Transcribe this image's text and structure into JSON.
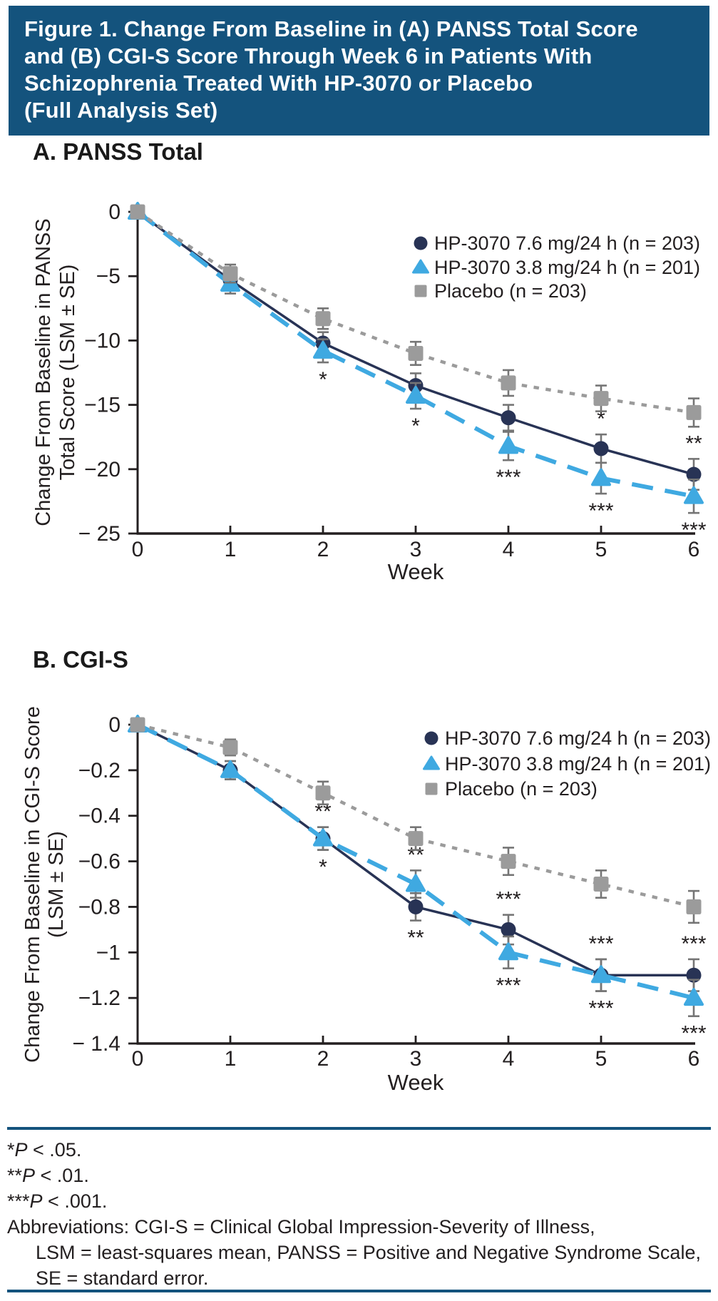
{
  "header": {
    "title_lines": [
      "Figure 1. Change From Baseline in (A) PANSS Total Score",
      "and (B) CGI-S Score Through Week 6 in Patients With",
      "Schizophrenia Treated With HP-3070 or Placebo",
      "(Full Analysis Set)"
    ]
  },
  "panels": {
    "a_label": "A. PANSS Total",
    "b_label": "B. CGI-S"
  },
  "colors": {
    "accent_blue": "#14537D",
    "hp76_navy": "#283355",
    "hp38_blue": "#3FA9E1",
    "placebo_gray": "#9B9B9B",
    "error_bar_gray": "#757575",
    "text": "#231F20"
  },
  "chart_data": [
    {
      "id": "A",
      "type": "line",
      "panel_label": "A. PANSS Total",
      "xlabel": "Week",
      "x": [
        0,
        1,
        2,
        3,
        4,
        5,
        6
      ],
      "xtick_labels": [
        "0",
        "1",
        "2",
        "3",
        "4",
        "5",
        "6"
      ],
      "ylabel_lines": [
        "Change From Baseline in PANSS",
        "Total Score (LSM ± SE)"
      ],
      "ylim": [
        0,
        -25
      ],
      "yticks": [
        {
          "v": 0,
          "label": "0"
        },
        {
          "v": -5,
          "label": "−5"
        },
        {
          "v": -10,
          "label": "−10"
        },
        {
          "v": -15,
          "label": "−15"
        },
        {
          "v": -20,
          "label": "−20"
        },
        {
          "v": -25,
          "label": "− 25"
        }
      ],
      "legend_position": "top-right",
      "grid": false,
      "series": [
        {
          "name": "HP-3070 7.6 mg/24 h (n = 203)",
          "marker": "circle",
          "line_style": "solid",
          "color": "#283355",
          "values": [
            0,
            -5.3,
            -10.2,
            -13.5,
            -16.0,
            -18.4,
            -20.4
          ],
          "se": [
            0.35,
            0.7,
            0.85,
            0.95,
            1.0,
            1.1,
            1.2
          ],
          "significance": [
            {
              "week": 3,
              "label": "*",
              "position": "above"
            },
            {
              "week": 5,
              "label": "*",
              "position": "above"
            },
            {
              "week": 6,
              "label": "**",
              "position": "above"
            }
          ]
        },
        {
          "name": "HP-3070 3.8 mg/24 h (n = 201)",
          "marker": "triangle",
          "line_style": "long-dash",
          "color": "#3FA9E1",
          "values": [
            0,
            -5.6,
            -10.8,
            -14.3,
            -18.2,
            -20.7,
            -22.1
          ],
          "se": [
            0.35,
            0.75,
            0.9,
            1.0,
            1.1,
            1.2,
            1.3
          ],
          "significance": [
            {
              "week": 2,
              "label": "*",
              "position": "below"
            },
            {
              "week": 3,
              "label": "*",
              "position": "below"
            },
            {
              "week": 4,
              "label": "***",
              "position": "below"
            },
            {
              "week": 5,
              "label": "***",
              "position": "below"
            },
            {
              "week": 6,
              "label": "***",
              "position": "below"
            }
          ]
        },
        {
          "name": "Placebo (n = 203)",
          "marker": "square",
          "line_style": "dot",
          "color": "#9B9B9B",
          "values": [
            0,
            -4.8,
            -8.3,
            -11.0,
            -13.3,
            -14.5,
            -15.6
          ],
          "se": [
            0.35,
            0.7,
            0.8,
            0.9,
            1.0,
            1.0,
            1.1
          ],
          "significance": []
        }
      ]
    },
    {
      "id": "B",
      "type": "line",
      "panel_label": "B. CGI-S",
      "xlabel": "Week",
      "x": [
        0,
        1,
        2,
        3,
        4,
        5,
        6
      ],
      "xtick_labels": [
        "0",
        "1",
        "2",
        "3",
        "4",
        "5",
        "6"
      ],
      "ylabel_lines": [
        "Change From Baseline in CGI-S Score",
        "(LSM ± SE)"
      ],
      "ylim": [
        0,
        -1.4
      ],
      "yticks": [
        {
          "v": 0,
          "label": "0"
        },
        {
          "v": -0.2,
          "label": "−0.2"
        },
        {
          "v": -0.4,
          "label": "−0.4"
        },
        {
          "v": -0.6,
          "label": "−0.6"
        },
        {
          "v": -0.8,
          "label": "−0.8"
        },
        {
          "v": -1.0,
          "label": "−1"
        },
        {
          "v": -1.2,
          "label": "−1.2"
        },
        {
          "v": -1.4,
          "label": "− 1.4"
        }
      ],
      "legend_position": "top-right",
      "grid": false,
      "series": [
        {
          "name": "HP-3070 7.6 mg/24 h (n = 203)",
          "marker": "circle",
          "line_style": "solid",
          "color": "#283355",
          "values": [
            0,
            -0.2,
            -0.5,
            -0.8,
            -0.9,
            -1.1,
            -1.1
          ],
          "se": [
            0.02,
            0.04,
            0.05,
            0.06,
            0.065,
            0.07,
            0.07
          ],
          "significance": [
            {
              "week": 2,
              "label": "**",
              "position": "above"
            },
            {
              "week": 3,
              "label": "**",
              "position": "below"
            },
            {
              "week": 4,
              "label": "***",
              "position": "above"
            },
            {
              "week": 5,
              "label": "***",
              "position": "above"
            },
            {
              "week": 6,
              "label": "***",
              "position": "above"
            }
          ]
        },
        {
          "name": "HP-3070 3.8 mg/24 h (n = 201)",
          "marker": "triangle",
          "line_style": "long-dash",
          "color": "#3FA9E1",
          "values": [
            0,
            -0.2,
            -0.5,
            -0.7,
            -1.0,
            -1.1,
            -1.2
          ],
          "se": [
            0.02,
            0.04,
            0.05,
            0.06,
            0.07,
            0.07,
            0.08
          ],
          "significance": [
            {
              "week": 2,
              "label": "*",
              "position": "below"
            },
            {
              "week": 3,
              "label": "**",
              "position": "above"
            },
            {
              "week": 4,
              "label": "***",
              "position": "below"
            },
            {
              "week": 5,
              "label": "***",
              "position": "below"
            },
            {
              "week": 6,
              "label": "***",
              "position": "below"
            }
          ]
        },
        {
          "name": "Placebo (n = 203)",
          "marker": "square",
          "line_style": "dot",
          "color": "#9B9B9B",
          "values": [
            0,
            -0.1,
            -0.3,
            -0.5,
            -0.6,
            -0.7,
            -0.8
          ],
          "se": [
            0.02,
            0.035,
            0.05,
            0.05,
            0.06,
            0.06,
            0.07
          ],
          "significance": []
        }
      ]
    }
  ],
  "footnotes": {
    "sig": [
      {
        "stars": "*",
        "p": "P",
        "rest": " < .05."
      },
      {
        "stars": "**",
        "p": "P",
        "rest": " < .01."
      },
      {
        "stars": "***",
        "p": "P",
        "rest": " < .001."
      }
    ],
    "abbreviations_lines": [
      "Abbreviations: CGI-S = Clinical Global Impression-Severity of Illness,",
      "LSM = least-squares mean, PANSS = Positive and Negative Syndrome Scale,",
      "SE = standard error."
    ]
  }
}
